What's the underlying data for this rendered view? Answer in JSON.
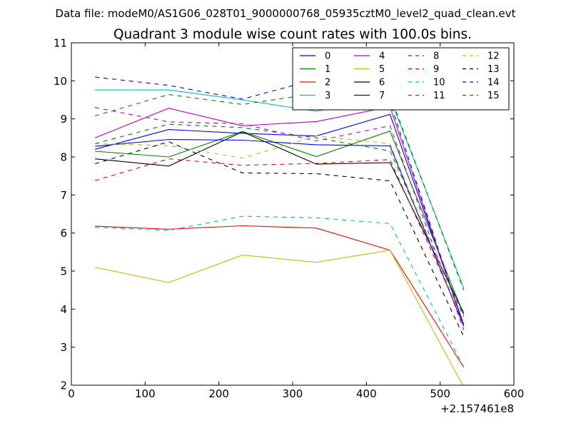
{
  "chart_data": {
    "type": "line",
    "suptitle": "Data file: modeM0/AS1G06_028T01_9000000768_05935cztM0_level2_quad_clean.evt",
    "title": "Quadrant 3 module wise count rates with 100.0s bins.",
    "xlabel": "",
    "ylabel": "",
    "x_offset_label": "+2.157461e8",
    "xlim": [
      0,
      600
    ],
    "ylim": [
      2,
      11
    ],
    "xticks": [
      0,
      100,
      200,
      300,
      400,
      500,
      600
    ],
    "yticks": [
      2,
      3,
      4,
      5,
      6,
      7,
      8,
      9,
      10,
      11
    ],
    "x": [
      32,
      132,
      232,
      332,
      432,
      532
    ],
    "legend_position": "top-right",
    "legend_columns": 4,
    "series": [
      {
        "name": "0",
        "color": "#0000ff",
        "dash": "solid",
        "values": [
          8.2,
          8.72,
          8.62,
          8.55,
          9.12,
          3.6
        ]
      },
      {
        "name": "1",
        "color": "#008000",
        "dash": "solid",
        "values": [
          8.15,
          8.0,
          8.67,
          8.01,
          8.68,
          3.85
        ]
      },
      {
        "name": "2",
        "color": "#ff0000",
        "dash": "solid",
        "values": [
          6.18,
          6.1,
          6.19,
          6.13,
          5.55,
          2.47
        ]
      },
      {
        "name": "3",
        "color": "#00bfbf",
        "dash": "solid",
        "values": [
          9.76,
          9.76,
          9.5,
          9.2,
          9.55,
          4.55
        ]
      },
      {
        "name": "4",
        "color": "#bf00bf",
        "dash": "solid",
        "values": [
          8.5,
          9.28,
          8.82,
          8.93,
          9.32,
          3.55
        ]
      },
      {
        "name": "5",
        "color": "#bfbf00",
        "dash": "solid",
        "values": [
          5.1,
          4.7,
          5.42,
          5.23,
          5.55,
          1.95
        ]
      },
      {
        "name": "6",
        "color": "#000000",
        "dash": "solid",
        "values": [
          7.95,
          7.76,
          8.66,
          7.81,
          7.85,
          3.9
        ]
      },
      {
        "name": "7",
        "color": "#0000ff",
        "dash": "solid",
        "values": [
          8.28,
          8.46,
          8.44,
          8.32,
          8.29,
          3.55
        ]
      },
      {
        "name": "8",
        "color": "#008000",
        "dash": "dashed",
        "values": [
          8.35,
          8.86,
          8.77,
          8.5,
          8.16,
          3.8
        ]
      },
      {
        "name": "9",
        "color": "#ff0000",
        "dash": "dashed",
        "values": [
          7.38,
          7.95,
          7.78,
          7.83,
          7.93,
          3.65
        ]
      },
      {
        "name": "10",
        "color": "#00bfbf",
        "dash": "dashed",
        "values": [
          6.15,
          6.07,
          6.44,
          6.4,
          6.25,
          2.48
        ]
      },
      {
        "name": "11",
        "color": "#bf00bf",
        "dash": "dashed",
        "values": [
          9.3,
          8.92,
          8.87,
          8.42,
          8.82,
          3.45
        ]
      },
      {
        "name": "12",
        "color": "#bfbf00",
        "dash": "dashed",
        "values": [
          8.35,
          8.3,
          7.97,
          8.55,
          8.35,
          3.62
        ]
      },
      {
        "name": "13",
        "color": "#000000",
        "dash": "dashed",
        "values": [
          7.82,
          8.4,
          7.58,
          7.56,
          7.37,
          3.28
        ]
      },
      {
        "name": "14",
        "color": "#0000ff",
        "dash": "dashed",
        "values": [
          10.1,
          9.88,
          9.52,
          10.04,
          9.45,
          3.55
        ]
      },
      {
        "name": "15",
        "color": "#008000",
        "dash": "dashed",
        "values": [
          9.08,
          9.64,
          9.38,
          9.67,
          9.62,
          4.5
        ]
      }
    ]
  }
}
